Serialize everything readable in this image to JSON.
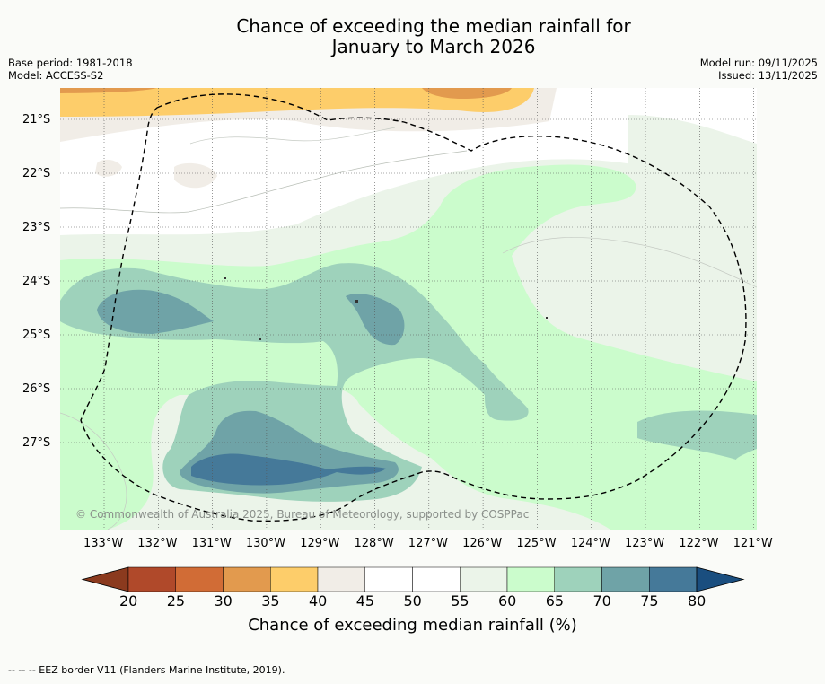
{
  "title": {
    "line1": "Chance of exceeding the median rainfall for",
    "line2": "January to March 2026"
  },
  "meta": {
    "base_period": "Base period: 1981-2018",
    "model": "Model: ACCESS-S2",
    "model_run": "Model run: 09/11/2025",
    "issued": "Issued: 13/11/2025"
  },
  "map": {
    "lat_labels": [
      "21°S",
      "22°S",
      "23°S",
      "24°S",
      "25°S",
      "26°S",
      "27°S"
    ],
    "lon_labels": [
      "133°W",
      "132°W",
      "131°W",
      "130°W",
      "129°W",
      "128°W",
      "127°W",
      "126°W",
      "125°W",
      "124°W",
      "123°W",
      "122°W",
      "121°W"
    ],
    "copyright": "© Commonwealth of Australia 2025, Bureau of Meteorology, supported by COSPPac",
    "colors": {
      "p20": "#8b3a1e",
      "p25": "#b0492a",
      "p30": "#d16c36",
      "p35": "#e29a4e",
      "p40": "#fdcd6a",
      "p45": "#f1ede7",
      "p50": "#ffffff",
      "p55": "#ffffff",
      "p60": "#ebf4e9",
      "p65": "#cbfccc",
      "p70": "#9ed2bb",
      "p75": "#6fa3a7",
      "p80": "#457999",
      "p85": "#1a4e7f"
    }
  },
  "colorbar": {
    "ticks": [
      "20",
      "25",
      "30",
      "35",
      "40",
      "45",
      "50",
      "55",
      "60",
      "65",
      "70",
      "75",
      "80"
    ],
    "colors": [
      "#b0492a",
      "#d16c36",
      "#e29a4e",
      "#fdcd6a",
      "#f1ede7",
      "#ffffff",
      "#ffffff",
      "#ebf4e9",
      "#cbfccc",
      "#9ed2bb",
      "#6fa3a7",
      "#457999"
    ],
    "low_color": "#8b3a1e",
    "high_color": "#1a4e7f",
    "label": "Chance of exceeding median rainfall (%)"
  },
  "footnote": "--  --  -- EEZ border V11 (Flanders Marine Institute, 2019)."
}
